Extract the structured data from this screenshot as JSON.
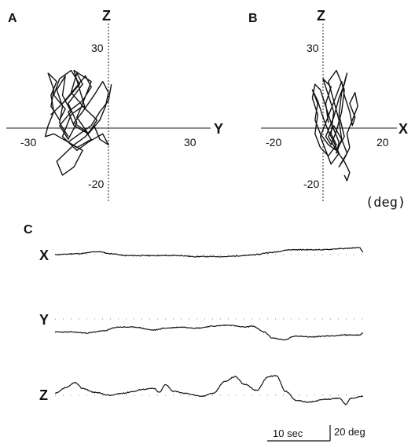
{
  "figure": {
    "unit_note": "(deg)",
    "scale_bar": {
      "time_label": "10 sec",
      "amp_label": "20 deg",
      "time_sec": 10,
      "amp_deg": 20
    }
  },
  "chart_data": [
    {
      "panel": "A",
      "type": "line",
      "xlabel": "Y",
      "ylabel": "Z",
      "xlim": [
        -35,
        35
      ],
      "ylim": [
        -27,
        38
      ],
      "xticks": [
        -30,
        30
      ],
      "yticks": [
        30,
        -20
      ],
      "xtick_labels": [
        "-30",
        "30"
      ],
      "ytick_labels": [
        "30",
        "-20"
      ],
      "grid": false,
      "series": [
        {
          "x": [
            -14,
            -17,
            -16,
            -18,
            -15,
            -16,
            -13,
            -17,
            -14,
            -11,
            -14,
            -9,
            -11,
            -13,
            -8,
            -10,
            -12,
            -6,
            -9,
            -11,
            -7,
            -4,
            -9,
            -13,
            -16,
            -11,
            -7,
            -2,
            0,
            -3,
            -5,
            -8,
            -12,
            -15,
            -18,
            -16,
            -12,
            -9,
            -14,
            -19,
            -22,
            -21,
            -19,
            -20,
            -18,
            -21,
            -19,
            -20,
            -17,
            -15,
            -19,
            -17,
            -13,
            -10,
            -15,
            -20,
            -16,
            -12,
            -8,
            -6,
            -9,
            -14,
            -12,
            -7,
            -3,
            -1,
            0,
            -2,
            -5,
            -9,
            -12,
            -8,
            -6,
            -11,
            -14,
            -10,
            -6,
            -3,
            0,
            1,
            1
          ],
          "y": [
            -3,
            2,
            8,
            14,
            19,
            12,
            6,
            1,
            -4,
            2,
            9,
            16,
            20,
            13,
            7,
            14,
            21,
            17,
            9,
            4,
            -2,
            3,
            8,
            5,
            -3,
            -8,
            -5,
            -2,
            -6,
            -4,
            1,
            -3,
            -6,
            -9,
            -12,
            -17,
            -14,
            -8,
            -5,
            -2,
            -3,
            1,
            6,
            12,
            17,
            20,
            14,
            8,
            3,
            7,
            12,
            18,
            21,
            16,
            10,
            5,
            9,
            14,
            19,
            15,
            10,
            6,
            1,
            -2,
            3,
            8,
            13,
            17,
            12,
            6,
            2,
            -1,
            -4,
            -7,
            -5,
            -2,
            1,
            6,
            10,
            16,
            16
          ]
        }
      ]
    },
    {
      "panel": "B",
      "type": "line",
      "xlabel": "X",
      "ylabel": "Z",
      "xlim": [
        -23,
        23
      ],
      "ylim": [
        -27,
        38
      ],
      "xticks": [
        -20,
        20
      ],
      "yticks": [
        30,
        -20
      ],
      "xtick_labels": [
        "-20",
        "20"
      ],
      "ytick_labels": [
        "30",
        "-20"
      ],
      "grid": false,
      "series": [
        {
          "x": [
            2,
            1,
            3,
            0,
            2,
            4,
            3,
            5,
            2,
            -1,
            -3,
            -2,
            -4,
            -3,
            -1,
            1,
            3,
            6,
            5,
            7,
            6,
            4,
            2,
            5,
            8,
            7,
            5,
            3,
            1,
            4,
            6,
            8,
            9,
            7,
            6,
            8,
            5,
            2,
            -1,
            -3,
            -2,
            -4,
            -2,
            0,
            2,
            4,
            6,
            3,
            1,
            -1,
            1,
            3,
            5,
            7,
            8,
            10,
            11,
            12,
            10,
            12,
            13,
            11,
            9,
            10,
            8,
            6,
            9,
            7,
            4,
            2,
            5,
            8,
            10,
            9,
            8
          ],
          "y": [
            2,
            9,
            15,
            18,
            12,
            6,
            -2,
            -6,
            -10,
            -7,
            -2,
            5,
            11,
            16,
            14,
            8,
            2,
            -5,
            -9,
            -4,
            3,
            10,
            17,
            21,
            14,
            6,
            -1,
            -6,
            -3,
            4,
            11,
            16,
            20,
            13,
            5,
            -3,
            -8,
            -6,
            -2,
            3,
            9,
            14,
            10,
            4,
            -1,
            -5,
            -9,
            -13,
            -8,
            -3,
            2,
            7,
            12,
            17,
            12,
            6,
            1,
            4,
            9,
            13,
            8,
            3,
            -2,
            -7,
            -11,
            -14,
            -9,
            -4,
            1,
            -3,
            -8,
            -12,
            -16,
            -19,
            -17
          ]
        }
      ]
    },
    {
      "panel": "C",
      "type": "line",
      "series": [
        {
          "name": "X",
          "t": [
            0,
            1,
            2,
            3,
            4,
            5,
            6,
            7,
            8,
            9,
            10,
            11,
            12,
            13,
            14,
            15,
            16,
            17,
            18,
            19,
            20,
            21,
            22,
            23,
            24,
            25,
            26,
            27,
            28,
            29,
            30,
            31,
            32,
            33,
            34,
            35,
            36,
            37,
            38,
            39,
            40,
            41,
            42,
            43,
            44,
            45,
            46,
            47,
            48,
            49,
            50,
            51,
            52,
            53,
            54,
            55,
            56,
            57,
            58,
            59,
            60,
            61,
            62,
            63,
            64,
            65,
            66,
            67,
            68,
            69,
            70,
            71,
            72,
            73,
            74,
            75,
            76,
            77,
            78,
            79,
            80,
            81,
            82,
            83,
            84,
            85,
            86,
            87,
            88,
            89,
            90,
            91,
            92,
            93,
            94,
            95,
            96,
            97,
            98,
            99,
            100,
            101,
            102,
            103,
            104,
            105,
            106,
            107,
            108,
            109,
            110,
            111,
            112,
            113,
            114,
            115,
            116,
            117,
            118,
            119,
            120,
            121,
            122,
            123,
            124,
            125,
            126,
            127,
            128,
            129,
            130,
            131,
            132,
            133,
            134,
            135,
            136,
            137,
            138,
            139,
            140,
            141,
            142,
            143,
            144,
            145,
            146,
            147,
            148,
            149,
            150,
            151,
            152,
            153,
            154,
            155,
            156,
            157,
            158,
            159,
            160,
            161,
            162,
            163,
            164,
            165,
            166,
            167,
            168,
            169,
            170,
            171,
            172,
            173,
            174,
            175,
            176,
            177,
            178,
            179,
            180,
            181,
            182,
            183,
            184,
            185,
            186,
            187,
            188,
            189,
            190,
            191,
            192,
            193,
            194,
            195,
            196,
            197,
            198,
            199,
            200,
            201,
            202,
            203,
            204,
            205,
            206,
            207,
            208,
            209,
            210,
            211,
            212,
            213,
            214,
            215,
            216,
            217,
            218,
            219,
            220,
            221,
            222,
            223,
            224,
            225,
            226,
            227,
            228,
            229,
            230,
            231,
            232,
            233,
            234,
            235,
            236,
            237,
            238,
            239,
            240,
            241,
            242,
            243,
            244,
            245,
            246,
            247,
            248,
            249,
            250,
            251,
            252,
            253,
            254,
            255,
            256,
            257,
            258,
            259,
            260,
            261,
            262,
            263,
            264,
            265,
            266,
            267,
            268,
            269,
            270,
            271,
            272,
            273,
            274,
            275,
            276,
            277,
            278,
            279,
            280,
            281,
            282,
            283,
            284,
            285,
            286,
            287,
            288,
            289,
            290,
            291,
            292,
            293,
            294,
            295,
            296,
            297,
            298,
            299,
            300,
            301,
            302,
            303,
            304,
            305,
            306,
            307,
            308,
            309,
            310,
            311,
            312,
            313,
            314,
            315,
            316,
            317,
            318,
            319,
            320,
            321,
            322,
            323,
            324,
            325,
            326,
            327,
            328,
            329,
            330,
            331,
            332,
            333,
            334,
            335,
            336,
            337,
            338,
            339,
            340,
            341,
            342,
            343,
            344,
            345,
            346,
            347,
            348,
            349,
            350,
            351,
            352,
            353,
            354,
            355,
            356,
            357,
            358,
            359,
            360,
            361,
            362,
            363,
            364,
            365,
            366,
            367,
            368,
            369,
            370,
            371,
            372,
            373,
            374,
            375,
            376,
            377,
            378,
            379,
            380,
            381,
            382,
            383,
            384,
            385,
            386,
            387,
            388,
            389,
            390
          ],
          "v_keyframes": [
            [
              0,
              0
            ],
            [
              30,
              1
            ],
            [
              55,
              3
            ],
            [
              70,
              1
            ],
            [
              90,
              -1
            ],
            [
              130,
              -1
            ],
            [
              160,
              -1
            ],
            [
              175,
              -2
            ],
            [
              200,
              -2
            ],
            [
              215,
              -2
            ],
            [
              240,
              -1
            ],
            [
              255,
              0
            ],
            [
              270,
              2
            ],
            [
              300,
              5
            ],
            [
              340,
              5
            ],
            [
              360,
              6
            ],
            [
              385,
              7
            ],
            [
              390,
              3
            ]
          ]
        },
        {
          "name": "Y",
          "v_keyframes": [
            [
              0,
              -2
            ],
            [
              20,
              -2
            ],
            [
              40,
              -3
            ],
            [
              60,
              -1
            ],
            [
              80,
              3
            ],
            [
              100,
              3
            ],
            [
              125,
              0
            ],
            [
              140,
              2
            ],
            [
              160,
              3
            ],
            [
              180,
              2
            ],
            [
              200,
              4
            ],
            [
              220,
              5
            ],
            [
              240,
              3
            ],
            [
              250,
              4
            ],
            [
              265,
              -2
            ],
            [
              275,
              -8
            ],
            [
              290,
              -10
            ],
            [
              305,
              -6
            ],
            [
              325,
              -7
            ],
            [
              345,
              -6
            ],
            [
              370,
              -5
            ],
            [
              385,
              -5
            ],
            [
              390,
              -3
            ]
          ]
        },
        {
          "name": "Z",
          "v_keyframes": [
            [
              0,
              2
            ],
            [
              15,
              8
            ],
            [
              25,
              13
            ],
            [
              35,
              7
            ],
            [
              50,
              3
            ],
            [
              70,
              0
            ],
            [
              85,
              2
            ],
            [
              100,
              4
            ],
            [
              110,
              6
            ],
            [
              125,
              7
            ],
            [
              132,
              3
            ],
            [
              140,
              11
            ],
            [
              150,
              4
            ],
            [
              165,
              2
            ],
            [
              185,
              -1
            ],
            [
              200,
              2
            ],
            [
              215,
              14
            ],
            [
              228,
              19
            ],
            [
              240,
              11
            ],
            [
              255,
              5
            ],
            [
              270,
              19
            ],
            [
              280,
              20
            ],
            [
              292,
              4
            ],
            [
              305,
              -5
            ],
            [
              320,
              -7
            ],
            [
              345,
              -4
            ],
            [
              360,
              -3
            ],
            [
              368,
              -9
            ],
            [
              375,
              -3
            ],
            [
              390,
              -1
            ]
          ]
        }
      ]
    }
  ]
}
